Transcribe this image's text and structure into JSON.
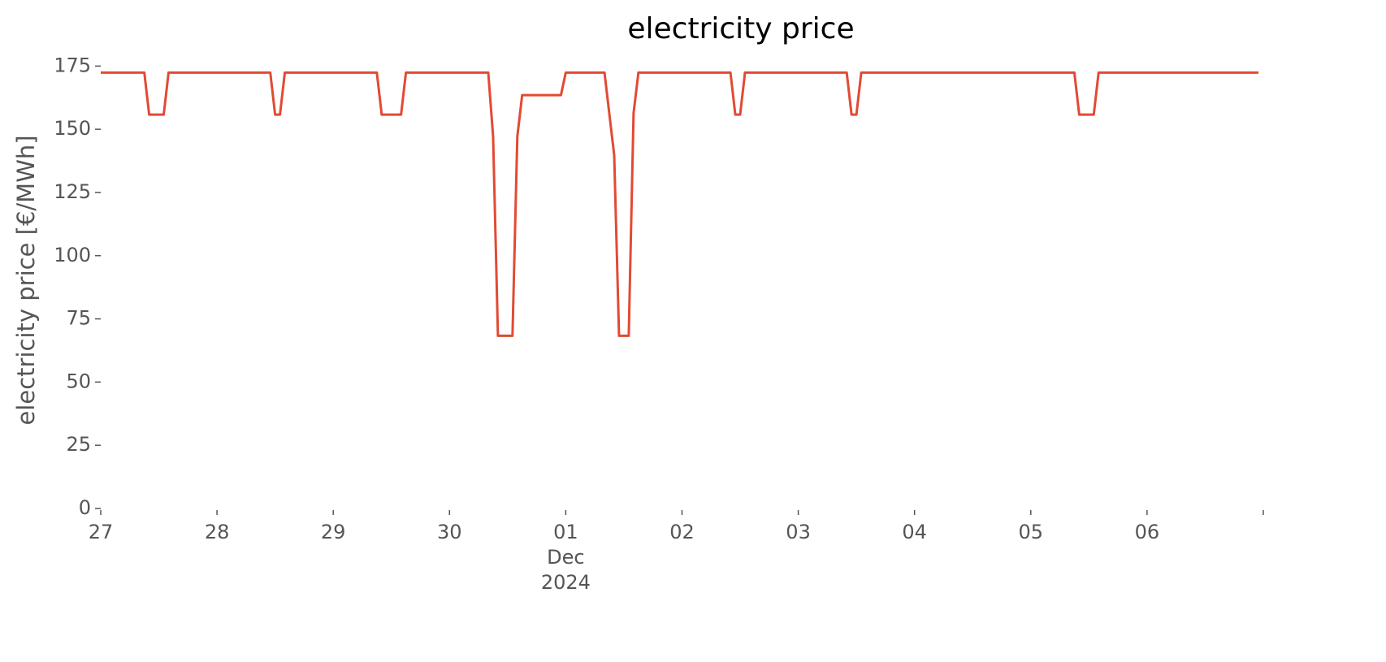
{
  "chart_data": {
    "type": "line",
    "title": "electricity price",
    "y_label": "electricity price [€/MWh]",
    "x": [
      "2024-11-27T00:00",
      "2024-11-27T09:00",
      "2024-11-27T10:00",
      "2024-11-27T13:00",
      "2024-11-27T14:00",
      "2024-11-28T11:00",
      "2024-11-28T12:00",
      "2024-11-28T13:00",
      "2024-11-28T14:00",
      "2024-11-29T09:00",
      "2024-11-29T10:00",
      "2024-11-29T14:00",
      "2024-11-29T15:00",
      "2024-11-30T08:00",
      "2024-11-30T09:00",
      "2024-11-30T10:00",
      "2024-11-30T13:00",
      "2024-11-30T14:00",
      "2024-11-30T15:00",
      "2024-11-30T23:00",
      "2024-12-01T00:00",
      "2024-12-01T08:00",
      "2024-12-01T09:00",
      "2024-12-01T10:00",
      "2024-12-01T11:00",
      "2024-12-01T13:00",
      "2024-12-01T14:00",
      "2024-12-01T15:00",
      "2024-12-02T10:00",
      "2024-12-02T11:00",
      "2024-12-02T12:00",
      "2024-12-02T13:00",
      "2024-12-03T10:00",
      "2024-12-03T11:00",
      "2024-12-03T12:00",
      "2024-12-03T13:00",
      "2024-12-05T09:00",
      "2024-12-05T10:00",
      "2024-12-05T13:00",
      "2024-12-05T14:00",
      "2024-12-06T23:00"
    ],
    "series": [
      {
        "name": "electricity price",
        "color": "#E24A33",
        "values": [
          172.4,
          172.4,
          155.8,
          155.8,
          172.4,
          172.4,
          155.8,
          155.8,
          172.4,
          172.4,
          155.8,
          155.8,
          172.4,
          172.4,
          147.1,
          68.3,
          68.3,
          147.1,
          163.5,
          163.5,
          172.4,
          172.4,
          156,
          139.7,
          68.3,
          68.3,
          156.4,
          172.4,
          172.4,
          155.8,
          155.8,
          172.4,
          172.4,
          155.8,
          155.8,
          172.4,
          172.4,
          155.8,
          155.8,
          172.4,
          172.4
        ]
      }
    ],
    "xlim": [
      "2024-11-27T00:00",
      "2024-12-06T23:00"
    ],
    "xticks": [
      {
        "value": "2024-11-27T00:00",
        "label": "27"
      },
      {
        "value": "2024-11-28T00:00",
        "label": "28"
      },
      {
        "value": "2024-11-29T00:00",
        "label": "29"
      },
      {
        "value": "2024-11-30T00:00",
        "label": "30"
      },
      {
        "value": "2024-12-01T00:00",
        "label": "01\nDec\n2024"
      },
      {
        "value": "2024-12-02T00:00",
        "label": "02"
      },
      {
        "value": "2024-12-03T00:00",
        "label": "03"
      },
      {
        "value": "2024-12-04T00:00",
        "label": "04"
      },
      {
        "value": "2024-12-05T00:00",
        "label": "05"
      },
      {
        "value": "2024-12-06T00:00",
        "label": "06"
      },
      {
        "value": "2024-12-07T00:00",
        "label": ""
      }
    ],
    "ylim": [
      0,
      178
    ],
    "yticks": [
      0,
      25,
      50,
      75,
      100,
      125,
      150,
      175
    ],
    "grid": false
  }
}
